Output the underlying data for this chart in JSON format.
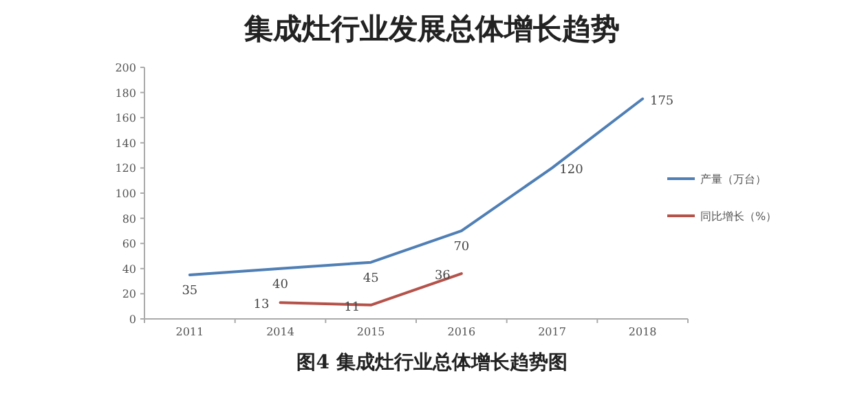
{
  "chart_data": {
    "type": "line",
    "title": "集成灶行业发展总体增长趋势",
    "categories": [
      "2011",
      "2014",
      "2015",
      "2016",
      "2017",
      "2018"
    ],
    "series": [
      {
        "name": "产量（万台）",
        "color": "#4f7fb5",
        "values": [
          35,
          40,
          45,
          70,
          120,
          175
        ]
      },
      {
        "name": "同比增长（%）",
        "color": "#b5524a",
        "values": [
          null,
          13,
          11,
          36,
          null,
          null
        ]
      }
    ],
    "ylim": [
      0,
      200
    ],
    "yticks": [
      0,
      20,
      40,
      60,
      80,
      100,
      120,
      140,
      160,
      180,
      200
    ],
    "data_labels": true,
    "grid": false,
    "legend": "right",
    "marker": "none",
    "line_style": "solid",
    "annotations": [
      "图4  集成灶行业总体增长趋势图"
    ]
  }
}
